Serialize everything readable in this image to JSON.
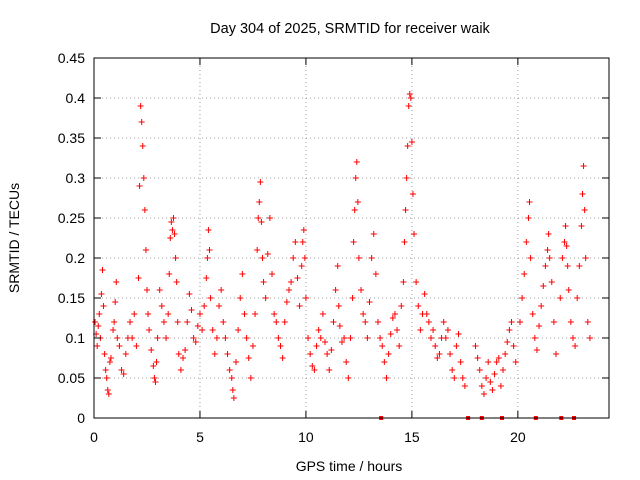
{
  "chart_data": {
    "type": "scatter",
    "title": "Day 304 of 2025, SRMTID for receiver waik",
    "xlabel": "GPS time / hours",
    "ylabel": "SRMTID / TECUs",
    "xlim": [
      0,
      24.3
    ],
    "ylim": [
      0,
      0.45
    ],
    "xticks": [
      0,
      5,
      10,
      15,
      20
    ],
    "yticks": [
      0,
      0.05,
      0.1,
      0.15,
      0.2,
      0.25,
      0.3,
      0.35,
      0.4,
      0.45
    ],
    "ytick_labels": [
      "0",
      "0.05",
      "0.1",
      "0.15",
      "0.2",
      "0.25",
      "0.3",
      "0.35",
      "0.4",
      "0.45"
    ],
    "grid": true,
    "marker": "+",
    "color": "#ff0000",
    "series": [
      {
        "name": "SRMTID",
        "points": [
          [
            0.05,
            0.12
          ],
          [
            0.1,
            0.105
          ],
          [
            0.15,
            0.09
          ],
          [
            0.2,
            0.115
          ],
          [
            0.25,
            0.13
          ],
          [
            0.3,
            0.1
          ],
          [
            0.35,
            0.155
          ],
          [
            0.4,
            0.185
          ],
          [
            0.45,
            0.14
          ],
          [
            0.5,
            0.08
          ],
          [
            0.55,
            0.06
          ],
          [
            0.6,
            0.05
          ],
          [
            0.65,
            0.035
          ],
          [
            0.7,
            0.03
          ],
          [
            0.75,
            0.07
          ],
          [
            0.8,
            0.075
          ],
          [
            0.9,
            0.11
          ],
          [
            0.95,
            0.12
          ],
          [
            1.0,
            0.145
          ],
          [
            1.05,
            0.17
          ],
          [
            1.1,
            0.1
          ],
          [
            1.2,
            0.09
          ],
          [
            1.3,
            0.06
          ],
          [
            1.4,
            0.055
          ],
          [
            1.5,
            0.08
          ],
          [
            1.6,
            0.1
          ],
          [
            1.7,
            0.12
          ],
          [
            1.8,
            0.1
          ],
          [
            1.9,
            0.13
          ],
          [
            2.0,
            0.09
          ],
          [
            2.1,
            0.175
          ],
          [
            2.15,
            0.29
          ],
          [
            2.2,
            0.39
          ],
          [
            2.25,
            0.37
          ],
          [
            2.3,
            0.34
          ],
          [
            2.35,
            0.3
          ],
          [
            2.4,
            0.26
          ],
          [
            2.45,
            0.21
          ],
          [
            2.5,
            0.16
          ],
          [
            2.55,
            0.13
          ],
          [
            2.6,
            0.11
          ],
          [
            2.7,
            0.085
          ],
          [
            2.8,
            0.065
          ],
          [
            2.85,
            0.05
          ],
          [
            2.9,
            0.045
          ],
          [
            2.95,
            0.07
          ],
          [
            3.0,
            0.1
          ],
          [
            3.1,
            0.16
          ],
          [
            3.2,
            0.14
          ],
          [
            3.3,
            0.12
          ],
          [
            3.4,
            0.1
          ],
          [
            3.5,
            0.13
          ],
          [
            3.55,
            0.18
          ],
          [
            3.6,
            0.225
          ],
          [
            3.65,
            0.245
          ],
          [
            3.7,
            0.235
          ],
          [
            3.75,
            0.25
          ],
          [
            3.8,
            0.23
          ],
          [
            3.85,
            0.2
          ],
          [
            3.9,
            0.17
          ],
          [
            3.95,
            0.12
          ],
          [
            4.0,
            0.08
          ],
          [
            4.1,
            0.06
          ],
          [
            4.2,
            0.075
          ],
          [
            4.3,
            0.085
          ],
          [
            4.4,
            0.12
          ],
          [
            4.5,
            0.155
          ],
          [
            4.6,
            0.135
          ],
          [
            4.7,
            0.1
          ],
          [
            4.8,
            0.095
          ],
          [
            4.9,
            0.115
          ],
          [
            5.0,
            0.13
          ],
          [
            5.1,
            0.11
          ],
          [
            5.2,
            0.14
          ],
          [
            5.3,
            0.175
          ],
          [
            5.35,
            0.2
          ],
          [
            5.4,
            0.235
          ],
          [
            5.45,
            0.21
          ],
          [
            5.5,
            0.15
          ],
          [
            5.6,
            0.11
          ],
          [
            5.7,
            0.08
          ],
          [
            5.8,
            0.1
          ],
          [
            5.9,
            0.14
          ],
          [
            6.0,
            0.16
          ],
          [
            6.1,
            0.12
          ],
          [
            6.2,
            0.1
          ],
          [
            6.3,
            0.08
          ],
          [
            6.4,
            0.06
          ],
          [
            6.5,
            0.05
          ],
          [
            6.55,
            0.035
          ],
          [
            6.6,
            0.025
          ],
          [
            6.7,
            0.07
          ],
          [
            6.8,
            0.11
          ],
          [
            6.9,
            0.15
          ],
          [
            7.0,
            0.18
          ],
          [
            7.1,
            0.13
          ],
          [
            7.2,
            0.1
          ],
          [
            7.3,
            0.075
          ],
          [
            7.4,
            0.05
          ],
          [
            7.5,
            0.09
          ],
          [
            7.6,
            0.13
          ],
          [
            7.7,
            0.21
          ],
          [
            7.75,
            0.25
          ],
          [
            7.8,
            0.27
          ],
          [
            7.85,
            0.295
          ],
          [
            7.9,
            0.245
          ],
          [
            7.95,
            0.2
          ],
          [
            8.0,
            0.17
          ],
          [
            8.1,
            0.15
          ],
          [
            8.2,
            0.205
          ],
          [
            8.3,
            0.25
          ],
          [
            8.4,
            0.18
          ],
          [
            8.5,
            0.13
          ],
          [
            8.6,
            0.12
          ],
          [
            8.7,
            0.1
          ],
          [
            8.8,
            0.09
          ],
          [
            8.9,
            0.075
          ],
          [
            9.0,
            0.12
          ],
          [
            9.1,
            0.145
          ],
          [
            9.2,
            0.16
          ],
          [
            9.3,
            0.17
          ],
          [
            9.4,
            0.2
          ],
          [
            9.5,
            0.22
          ],
          [
            9.6,
            0.175
          ],
          [
            9.7,
            0.14
          ],
          [
            9.8,
            0.19
          ],
          [
            9.85,
            0.22
          ],
          [
            9.9,
            0.235
          ],
          [
            9.95,
            0.2
          ],
          [
            10.0,
            0.15
          ],
          [
            10.1,
            0.1
          ],
          [
            10.2,
            0.08
          ],
          [
            10.3,
            0.065
          ],
          [
            10.4,
            0.06
          ],
          [
            10.5,
            0.09
          ],
          [
            10.6,
            0.11
          ],
          [
            10.7,
            0.1
          ],
          [
            10.8,
            0.13
          ],
          [
            10.9,
            0.095
          ],
          [
            11.0,
            0.08
          ],
          [
            11.1,
            0.06
          ],
          [
            11.2,
            0.085
          ],
          [
            11.3,
            0.12
          ],
          [
            11.4,
            0.16
          ],
          [
            11.5,
            0.19
          ],
          [
            11.55,
            0.14
          ],
          [
            11.6,
            0.115
          ],
          [
            11.7,
            0.095
          ],
          [
            11.8,
            0.1
          ],
          [
            11.9,
            0.07
          ],
          [
            12.0,
            0.05
          ],
          [
            12.1,
            0.1
          ],
          [
            12.2,
            0.15
          ],
          [
            12.25,
            0.22
          ],
          [
            12.3,
            0.26
          ],
          [
            12.35,
            0.3
          ],
          [
            12.4,
            0.32
          ],
          [
            12.45,
            0.27
          ],
          [
            12.5,
            0.2
          ],
          [
            12.6,
            0.16
          ],
          [
            12.7,
            0.13
          ],
          [
            12.8,
            0.12
          ],
          [
            12.9,
            0.1
          ],
          [
            13.0,
            0.145
          ],
          [
            13.1,
            0.2
          ],
          [
            13.2,
            0.23
          ],
          [
            13.3,
            0.18
          ],
          [
            13.4,
            0.12
          ],
          [
            13.5,
            0.1
          ],
          [
            13.6,
            0.09
          ],
          [
            13.7,
            0.07
          ],
          [
            13.8,
            0.05
          ],
          [
            13.9,
            0.08
          ],
          [
            14.0,
            0.105
          ],
          [
            14.1,
            0.125
          ],
          [
            14.2,
            0.13
          ],
          [
            14.3,
            0.11
          ],
          [
            14.4,
            0.09
          ],
          [
            14.5,
            0.14
          ],
          [
            14.6,
            0.17
          ],
          [
            14.65,
            0.22
          ],
          [
            14.7,
            0.26
          ],
          [
            14.75,
            0.3
          ],
          [
            14.8,
            0.34
          ],
          [
            14.85,
            0.39
          ],
          [
            14.9,
            0.405
          ],
          [
            14.95,
            0.4
          ],
          [
            15.0,
            0.345
          ],
          [
            15.05,
            0.28
          ],
          [
            15.1,
            0.23
          ],
          [
            15.2,
            0.17
          ],
          [
            15.3,
            0.14
          ],
          [
            15.4,
            0.11
          ],
          [
            15.5,
            0.13
          ],
          [
            15.6,
            0.155
          ],
          [
            15.7,
            0.13
          ],
          [
            15.8,
            0.12
          ],
          [
            15.9,
            0.1
          ],
          [
            16.0,
            0.11
          ],
          [
            16.1,
            0.09
          ],
          [
            16.2,
            0.075
          ],
          [
            16.3,
            0.08
          ],
          [
            16.4,
            0.1
          ],
          [
            16.5,
            0.12
          ],
          [
            16.6,
            0.1
          ],
          [
            16.7,
            0.11
          ],
          [
            16.8,
            0.08
          ],
          [
            16.9,
            0.06
          ],
          [
            17.0,
            0.05
          ],
          [
            17.1,
            0.09
          ],
          [
            17.2,
            0.105
          ],
          [
            17.3,
            0.07
          ],
          [
            17.4,
            0.05
          ],
          [
            17.5,
            0.04
          ],
          [
            18.0,
            0.09
          ],
          [
            18.1,
            0.075
          ],
          [
            18.2,
            0.06
          ],
          [
            18.3,
            0.04
          ],
          [
            18.4,
            0.03
          ],
          [
            18.5,
            0.05
          ],
          [
            18.6,
            0.07
          ],
          [
            18.7,
            0.045
          ],
          [
            18.8,
            0.035
          ],
          [
            18.9,
            0.055
          ],
          [
            19.0,
            0.07
          ],
          [
            19.1,
            0.075
          ],
          [
            19.2,
            0.04
          ],
          [
            19.3,
            0.06
          ],
          [
            19.4,
            0.08
          ],
          [
            19.5,
            0.095
          ],
          [
            19.6,
            0.11
          ],
          [
            19.7,
            0.12
          ],
          [
            19.8,
            0.09
          ],
          [
            19.9,
            0.07
          ],
          [
            20.1,
            0.12
          ],
          [
            20.2,
            0.15
          ],
          [
            20.3,
            0.18
          ],
          [
            20.4,
            0.22
          ],
          [
            20.5,
            0.25
          ],
          [
            20.55,
            0.27
          ],
          [
            20.6,
            0.2
          ],
          [
            20.7,
            0.13
          ],
          [
            20.8,
            0.1
          ],
          [
            20.9,
            0.085
          ],
          [
            21.0,
            0.115
          ],
          [
            21.1,
            0.14
          ],
          [
            21.2,
            0.165
          ],
          [
            21.3,
            0.19
          ],
          [
            21.4,
            0.21
          ],
          [
            21.45,
            0.23
          ],
          [
            21.5,
            0.2
          ],
          [
            21.6,
            0.17
          ],
          [
            21.7,
            0.12
          ],
          [
            21.8,
            0.08
          ],
          [
            22.0,
            0.15
          ],
          [
            22.1,
            0.2
          ],
          [
            22.2,
            0.22
          ],
          [
            22.25,
            0.24
          ],
          [
            22.3,
            0.215
          ],
          [
            22.35,
            0.19
          ],
          [
            22.4,
            0.16
          ],
          [
            22.5,
            0.12
          ],
          [
            22.6,
            0.1
          ],
          [
            22.7,
            0.09
          ],
          [
            22.8,
            0.15
          ],
          [
            22.9,
            0.19
          ],
          [
            23.0,
            0.24
          ],
          [
            23.05,
            0.28
          ],
          [
            23.1,
            0.315
          ],
          [
            23.15,
            0.26
          ],
          [
            23.2,
            0.2
          ],
          [
            23.3,
            0.12
          ],
          [
            23.4,
            0.1
          ]
        ]
      }
    ],
    "zero_markers": [
      13.55,
      17.65,
      18.3,
      19.25,
      20.85,
      22.05,
      22.65
    ]
  }
}
